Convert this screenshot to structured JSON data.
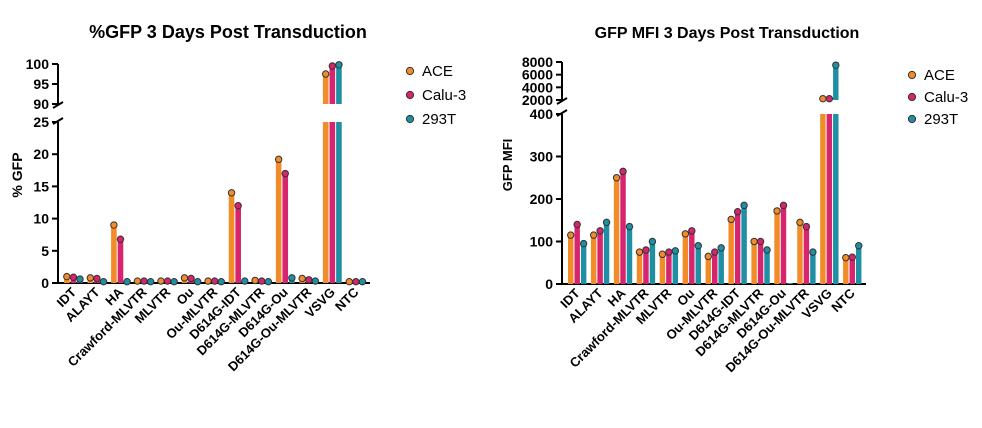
{
  "legend": {
    "entries": [
      {
        "name": "ACE",
        "color": "#F28C28"
      },
      {
        "name": "Calu-3",
        "color": "#D6246E"
      },
      {
        "name": "293T",
        "color": "#1F8FA3"
      }
    ]
  },
  "chart_data": [
    {
      "type": "bar",
      "title": "%GFP 3  Days Post Transduction",
      "ylabel": "% GFP",
      "xlabel": "",
      "broken_axis": true,
      "lower_segment": {
        "ylim": [
          0,
          25
        ],
        "ticks": [
          0,
          5,
          10,
          15,
          20,
          25
        ]
      },
      "upper_segment": {
        "ylim": [
          90,
          100
        ],
        "ticks": [
          90,
          95,
          100
        ]
      },
      "categories": [
        "IDT",
        "ALAYT",
        "HA",
        "Crawford-MLVTR",
        "MLVTR",
        "Ou",
        "Ou-MLVTR",
        "D614G-IDT",
        "D614G-MLVTR",
        "D614G-Ou",
        "D614G-Ou-MLVTR",
        "VSVG",
        "NTC"
      ],
      "series": [
        {
          "name": "ACE",
          "values": [
            1.0,
            0.8,
            9.0,
            0.3,
            0.3,
            0.8,
            0.3,
            14.0,
            0.4,
            19.2,
            0.7,
            97.5,
            0.2
          ]
        },
        {
          "name": "Calu-3",
          "values": [
            0.9,
            0.7,
            6.8,
            0.3,
            0.3,
            0.7,
            0.3,
            12.0,
            0.3,
            17.0,
            0.5,
            99.5,
            0.2
          ]
        },
        {
          "name": "293T",
          "values": [
            0.6,
            0.2,
            0.2,
            0.2,
            0.2,
            0.2,
            0.2,
            0.3,
            0.2,
            0.8,
            0.3,
            99.8,
            0.2
          ]
        }
      ],
      "legend_position": "right"
    },
    {
      "type": "bar",
      "title": "GFP MFI 3 Days Post Transduction",
      "ylabel": "GFP MFI",
      "xlabel": "",
      "broken_axis": true,
      "lower_segment": {
        "ylim": [
          0,
          400
        ],
        "ticks": [
          0,
          100,
          200,
          300,
          400
        ]
      },
      "upper_segment": {
        "ylim": [
          2000,
          8000
        ],
        "ticks": [
          2000,
          4000,
          6000,
          8000
        ]
      },
      "categories": [
        "IDT",
        "ALAYT",
        "HA",
        "Crawford-MLVTR",
        "MLVTR",
        "Ou",
        "Ou-MLVTR",
        "D614G-IDT",
        "D614G-MLVTR",
        "D614G-Ou",
        "D614G-Ou-MLVTR",
        "VSVG",
        "NTC"
      ],
      "series": [
        {
          "name": "ACE",
          "values": [
            115,
            115,
            250,
            75,
            70,
            118,
            65,
            152,
            100,
            172,
            145,
            2200,
            62
          ]
        },
        {
          "name": "Calu-3",
          "values": [
            140,
            125,
            265,
            80,
            75,
            125,
            75,
            170,
            100,
            185,
            135,
            2200,
            63
          ]
        },
        {
          "name": "293T",
          "values": [
            95,
            145,
            135,
            100,
            78,
            90,
            85,
            185,
            80,
            0,
            75,
            7500,
            90
          ]
        }
      ],
      "legend_position": "right"
    }
  ]
}
